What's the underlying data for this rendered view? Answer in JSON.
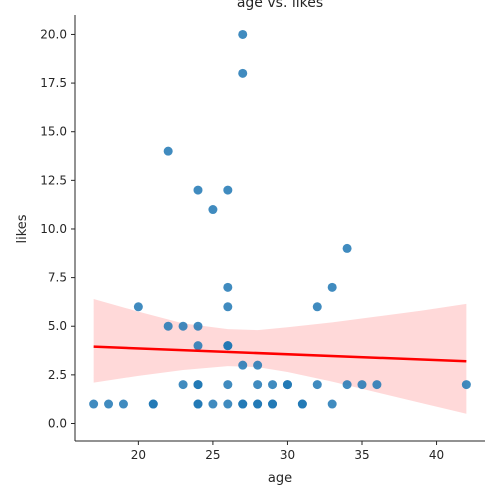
{
  "chart_data": {
    "type": "scatter",
    "title": "age vs. likes",
    "xlabel": "age",
    "ylabel": "likes",
    "xlim": [
      15.75,
      43.25
    ],
    "ylim": [
      -0.9,
      21.0
    ],
    "xticks": [
      20,
      25,
      30,
      35,
      40
    ],
    "yticks": [
      0.0,
      2.5,
      5.0,
      7.5,
      10.0,
      12.5,
      15.0,
      17.5,
      20.0
    ],
    "xtick_labels": [
      "20",
      "25",
      "30",
      "35",
      "40"
    ],
    "ytick_labels": [
      "0.0",
      "2.5",
      "5.0",
      "7.5",
      "10.0",
      "12.5",
      "15.0",
      "17.5",
      "20.0"
    ],
    "grid": false,
    "colors": {
      "points": "#1f77b4",
      "regression_line": "#ff0000",
      "confidence_band": "#ffcccc"
    },
    "points": [
      {
        "x": 17,
        "y": 1
      },
      {
        "x": 18,
        "y": 1
      },
      {
        "x": 19,
        "y": 1
      },
      {
        "x": 20,
        "y": 6
      },
      {
        "x": 21,
        "y": 1
      },
      {
        "x": 21,
        "y": 1
      },
      {
        "x": 22,
        "y": 14
      },
      {
        "x": 22,
        "y": 5
      },
      {
        "x": 23,
        "y": 5
      },
      {
        "x": 23,
        "y": 2
      },
      {
        "x": 24,
        "y": 12
      },
      {
        "x": 24,
        "y": 5
      },
      {
        "x": 24,
        "y": 4
      },
      {
        "x": 24,
        "y": 2
      },
      {
        "x": 24,
        "y": 2
      },
      {
        "x": 24,
        "y": 1
      },
      {
        "x": 24,
        "y": 1
      },
      {
        "x": 25,
        "y": 11
      },
      {
        "x": 25,
        "y": 1
      },
      {
        "x": 26,
        "y": 12
      },
      {
        "x": 26,
        "y": 7
      },
      {
        "x": 26,
        "y": 6
      },
      {
        "x": 26,
        "y": 4
      },
      {
        "x": 26,
        "y": 4
      },
      {
        "x": 26,
        "y": 2
      },
      {
        "x": 26,
        "y": 1
      },
      {
        "x": 27,
        "y": 20
      },
      {
        "x": 27,
        "y": 18
      },
      {
        "x": 27,
        "y": 3
      },
      {
        "x": 27,
        "y": 1
      },
      {
        "x": 27,
        "y": 1
      },
      {
        "x": 28,
        "y": 3
      },
      {
        "x": 28,
        "y": 2
      },
      {
        "x": 28,
        "y": 1
      },
      {
        "x": 28,
        "y": 1
      },
      {
        "x": 29,
        "y": 2
      },
      {
        "x": 29,
        "y": 1
      },
      {
        "x": 29,
        "y": 1
      },
      {
        "x": 30,
        "y": 2
      },
      {
        "x": 30,
        "y": 2
      },
      {
        "x": 31,
        "y": 1
      },
      {
        "x": 31,
        "y": 1
      },
      {
        "x": 32,
        "y": 6
      },
      {
        "x": 32,
        "y": 2
      },
      {
        "x": 33,
        "y": 7
      },
      {
        "x": 33,
        "y": 1
      },
      {
        "x": 34,
        "y": 9
      },
      {
        "x": 34,
        "y": 2
      },
      {
        "x": 35,
        "y": 2
      },
      {
        "x": 36,
        "y": 2
      },
      {
        "x": 42,
        "y": 2
      }
    ],
    "regression": {
      "x": [
        17,
        42
      ],
      "y": [
        3.95,
        3.2
      ]
    },
    "confidence_band": {
      "x": [
        17,
        20,
        23,
        26,
        28,
        30,
        33,
        36,
        39,
        42
      ],
      "lower": [
        2.1,
        2.45,
        2.75,
        2.95,
        2.9,
        2.65,
        2.15,
        1.6,
        1.05,
        0.5
      ],
      "upper": [
        6.4,
        5.75,
        5.15,
        4.85,
        4.8,
        4.95,
        5.2,
        5.5,
        5.8,
        6.15
      ]
    }
  }
}
